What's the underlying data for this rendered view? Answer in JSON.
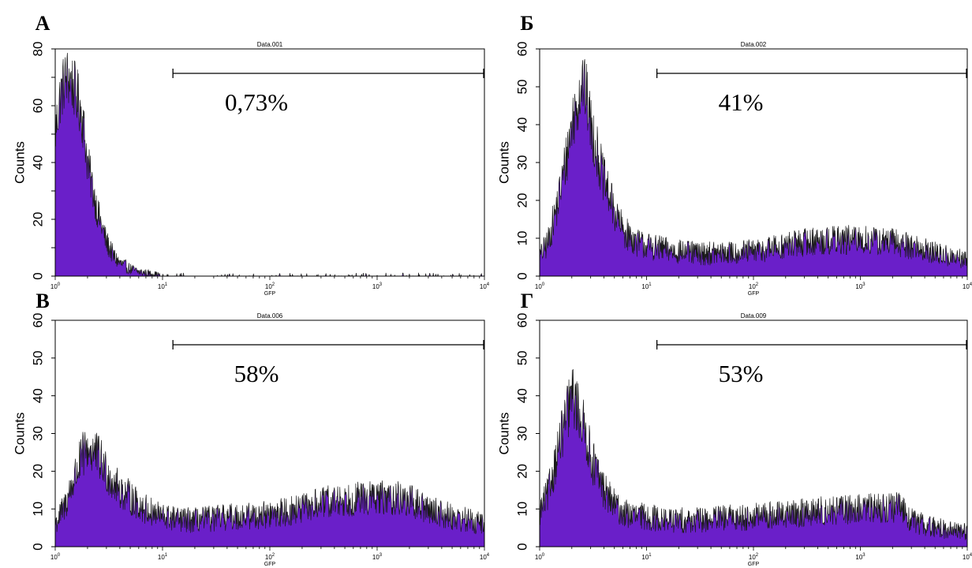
{
  "chart_data": [
    {
      "type": "area",
      "panel_label": "А",
      "title": "Data.001",
      "xlabel": "GFP",
      "ylabel": "Counts",
      "x_scale": "log",
      "xlim": [
        1,
        10000
      ],
      "ylim": [
        0,
        80
      ],
      "yticks": [
        0,
        10,
        20,
        30,
        40,
        50,
        60,
        70,
        80
      ],
      "ytick_labels": [
        "0",
        "20",
        "40",
        "60",
        "80"
      ],
      "xtick_labels": [
        {
          "base": "10",
          "exp": "0"
        },
        {
          "base": "10",
          "exp": "1"
        },
        {
          "base": "10",
          "exp": "2"
        },
        {
          "base": "10",
          "exp": "3"
        },
        {
          "base": "10",
          "exp": "4"
        }
      ],
      "gate": {
        "from": 12.5,
        "to": 10000,
        "label": "0,73%"
      },
      "fill_color": "#6a1fc9",
      "series": [
        {
          "x": [
            1,
            1.1,
            1.2,
            1.3,
            1.4,
            1.5,
            1.6,
            1.7,
            1.8,
            1.9,
            2.0,
            2.2,
            2.5,
            3.0,
            3.5,
            4.0,
            5.0,
            6.0,
            8.0,
            10,
            20,
            50,
            100,
            1000,
            10000
          ],
          "y": [
            50,
            62,
            68,
            70,
            69,
            66,
            63,
            60,
            55,
            48,
            40,
            32,
            22,
            12,
            7,
            4.5,
            2.5,
            1.5,
            0.8,
            0.4,
            0.2,
            0.15,
            0.1,
            0.1,
            0.05
          ]
        }
      ]
    },
    {
      "type": "area",
      "panel_label": "Б",
      "title": "Data.002",
      "xlabel": "GFP",
      "ylabel": "Counts",
      "x_scale": "log",
      "xlim": [
        1,
        10000
      ],
      "ylim": [
        0,
        60
      ],
      "yticks": [
        0,
        10,
        20,
        30,
        40,
        50,
        60
      ],
      "ytick_labels": [
        "0",
        "10",
        "20",
        "30",
        "40",
        "50",
        "60"
      ],
      "xtick_labels": [
        {
          "base": "10",
          "exp": "0"
        },
        {
          "base": "10",
          "exp": "1"
        },
        {
          "base": "10",
          "exp": "2"
        },
        {
          "base": "10",
          "exp": "3"
        },
        {
          "base": "10",
          "exp": "4"
        }
      ],
      "gate": {
        "from": 12.5,
        "to": 10000,
        "label": "41%"
      },
      "fill_color": "#6a1fc9",
      "series": [
        {
          "x": [
            1,
            1.2,
            1.5,
            1.8,
            2.0,
            2.3,
            2.5,
            2.8,
            3.0,
            3.5,
            4.0,
            5.0,
            6.0,
            8.0,
            10,
            15,
            20,
            30,
            50,
            100,
            200,
            300,
            500,
            1000,
            2000,
            3000,
            5000,
            10000
          ],
          "y": [
            5,
            9,
            20,
            32,
            40,
            47,
            52,
            46,
            40,
            32,
            25,
            17,
            12,
            9,
            8,
            7,
            6.5,
            6,
            6,
            6.5,
            8,
            9,
            9.5,
            9.5,
            9,
            8,
            6,
            4
          ]
        }
      ]
    },
    {
      "type": "area",
      "panel_label": "В",
      "title": "Data.006",
      "xlabel": "GFP",
      "ylabel": "Counts",
      "x_scale": "log",
      "xlim": [
        1,
        10000
      ],
      "ylim": [
        0,
        60
      ],
      "yticks": [
        0,
        10,
        20,
        30,
        40,
        50,
        60
      ],
      "ytick_labels": [
        "0",
        "10",
        "20",
        "30",
        "40",
        "50",
        "60"
      ],
      "xtick_labels": [
        {
          "base": "10",
          "exp": "0"
        },
        {
          "base": "10",
          "exp": "1"
        },
        {
          "base": "10",
          "exp": "2"
        },
        {
          "base": "10",
          "exp": "3"
        },
        {
          "base": "10",
          "exp": "4"
        }
      ],
      "gate": {
        "from": 12.5,
        "to": 10000,
        "label": "58%"
      },
      "fill_color": "#6a1fc9",
      "series": [
        {
          "x": [
            1,
            1.2,
            1.5,
            1.8,
            2.0,
            2.3,
            2.6,
            3.0,
            3.5,
            4.0,
            5.0,
            6.0,
            8.0,
            10,
            15,
            20,
            30,
            50,
            100,
            200,
            300,
            500,
            1000,
            1500,
            2000,
            3000,
            5000,
            10000
          ],
          "y": [
            6,
            10,
            18,
            24,
            26,
            25,
            23,
            20,
            17,
            15,
            13,
            11,
            9,
            8,
            7,
            7,
            7.5,
            8,
            8.5,
            10,
            11.5,
            12.5,
            13,
            13,
            12,
            10,
            8,
            6
          ]
        }
      ]
    },
    {
      "type": "area",
      "panel_label": "Г",
      "title": "Data.009",
      "xlabel": "GFP",
      "ylabel": "Counts",
      "x_scale": "log",
      "xlim": [
        1,
        10000
      ],
      "ylim": [
        0,
        60
      ],
      "yticks": [
        0,
        10,
        20,
        30,
        40,
        50,
        60
      ],
      "ytick_labels": [
        "0",
        "10",
        "20",
        "30",
        "40",
        "50",
        "60"
      ],
      "xtick_labels": [
        {
          "base": "10",
          "exp": "0"
        },
        {
          "base": "10",
          "exp": "1"
        },
        {
          "base": "10",
          "exp": "2"
        },
        {
          "base": "10",
          "exp": "3"
        },
        {
          "base": "10",
          "exp": "4"
        }
      ],
      "gate": {
        "from": 12.5,
        "to": 10000,
        "label": "53%"
      },
      "fill_color": "#6a1fc9",
      "series": [
        {
          "x": [
            1,
            1.2,
            1.5,
            1.8,
            2.0,
            2.2,
            2.5,
            2.8,
            3.0,
            3.5,
            4.0,
            5.0,
            6.0,
            8.0,
            10,
            15,
            20,
            30,
            50,
            100,
            200,
            300,
            500,
            1000,
            2000,
            2500,
            3000,
            5000,
            10000
          ],
          "y": [
            9,
            14,
            26,
            35,
            40,
            38,
            33,
            28,
            24,
            19,
            15,
            11,
            9,
            8,
            8,
            7,
            7,
            7,
            7.5,
            8,
            8.5,
            9,
            9.5,
            10,
            10.5,
            10,
            7,
            5,
            4
          ]
        }
      ]
    }
  ]
}
